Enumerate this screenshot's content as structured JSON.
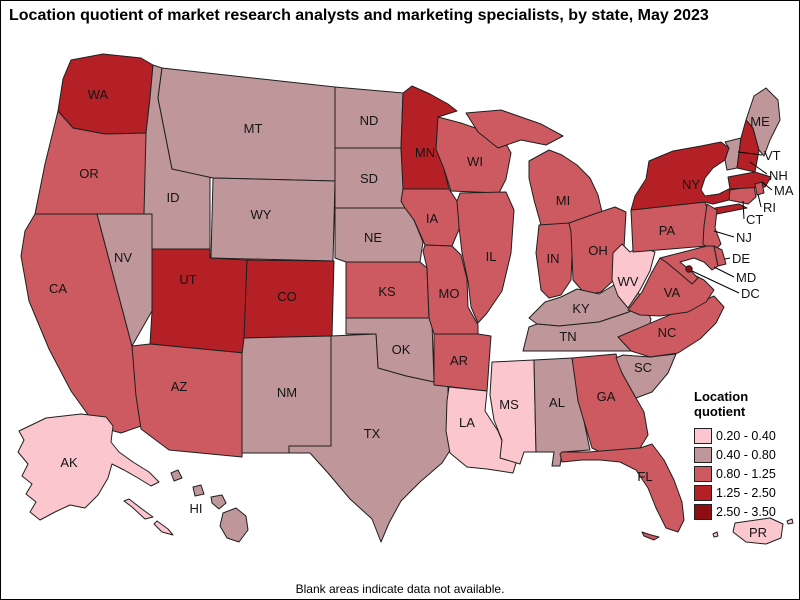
{
  "title": "Location quotient of market research analysts and marketing specialists, by state, May 2023",
  "footer": {
    "note": "Blank areas indicate data not available."
  },
  "legend": {
    "title": "Location quotient",
    "items": [
      {
        "range": "0.20 - 0.40",
        "color": "#fcc6ce"
      },
      {
        "range": "0.40 - 0.80",
        "color": "#bf979b"
      },
      {
        "range": "0.80 - 1.25",
        "color": "#cd5a60"
      },
      {
        "range": "1.25 - 2.50",
        "color": "#b42025"
      },
      {
        "range": "2.50 - 3.50",
        "color": "#8c0d12"
      }
    ]
  },
  "map": {
    "type": "choropleth",
    "region": "United States",
    "states": [
      {
        "abbr": "WA",
        "bucket": 3
      },
      {
        "abbr": "OR",
        "bucket": 2
      },
      {
        "abbr": "CA",
        "bucket": 2
      },
      {
        "abbr": "NV",
        "bucket": 1
      },
      {
        "abbr": "ID",
        "bucket": 1
      },
      {
        "abbr": "MT",
        "bucket": 1
      },
      {
        "abbr": "WY",
        "bucket": 1
      },
      {
        "abbr": "UT",
        "bucket": 3
      },
      {
        "abbr": "CO",
        "bucket": 3
      },
      {
        "abbr": "AZ",
        "bucket": 2
      },
      {
        "abbr": "NM",
        "bucket": 1
      },
      {
        "abbr": "ND",
        "bucket": 1
      },
      {
        "abbr": "SD",
        "bucket": 1
      },
      {
        "abbr": "NE",
        "bucket": 1
      },
      {
        "abbr": "KS",
        "bucket": 2
      },
      {
        "abbr": "OK",
        "bucket": 1
      },
      {
        "abbr": "TX",
        "bucket": 1
      },
      {
        "abbr": "MN",
        "bucket": 3
      },
      {
        "abbr": "IA",
        "bucket": 2
      },
      {
        "abbr": "MO",
        "bucket": 2
      },
      {
        "abbr": "AR",
        "bucket": 2
      },
      {
        "abbr": "LA",
        "bucket": 0
      },
      {
        "abbr": "WI",
        "bucket": 2
      },
      {
        "abbr": "IL",
        "bucket": 2
      },
      {
        "abbr": "MI",
        "bucket": 2
      },
      {
        "abbr": "IN",
        "bucket": 2
      },
      {
        "abbr": "OH",
        "bucket": 2
      },
      {
        "abbr": "KY",
        "bucket": 1
      },
      {
        "abbr": "TN",
        "bucket": 1
      },
      {
        "abbr": "MS",
        "bucket": 0
      },
      {
        "abbr": "AL",
        "bucket": 1
      },
      {
        "abbr": "GA",
        "bucket": 2
      },
      {
        "abbr": "FL",
        "bucket": 2
      },
      {
        "abbr": "SC",
        "bucket": 1
      },
      {
        "abbr": "NC",
        "bucket": 2
      },
      {
        "abbr": "VA",
        "bucket": 2
      },
      {
        "abbr": "WV",
        "bucket": 0
      },
      {
        "abbr": "PA",
        "bucket": 2
      },
      {
        "abbr": "NY",
        "bucket": 3
      },
      {
        "abbr": "NJ",
        "bucket": 2
      },
      {
        "abbr": "CT",
        "bucket": 2
      },
      {
        "abbr": "MA",
        "bucket": 3
      },
      {
        "abbr": "RI",
        "bucket": 2
      },
      {
        "abbr": "VT",
        "bucket": 1
      },
      {
        "abbr": "NH",
        "bucket": 3
      },
      {
        "abbr": "ME",
        "bucket": 1
      },
      {
        "abbr": "MD",
        "bucket": 2
      },
      {
        "abbr": "DE",
        "bucket": 2
      },
      {
        "abbr": "DC",
        "bucket": 4
      },
      {
        "abbr": "AK",
        "bucket": 0
      },
      {
        "abbr": "HI",
        "bucket": 1
      },
      {
        "abbr": "PR",
        "bucket": 0
      }
    ]
  }
}
